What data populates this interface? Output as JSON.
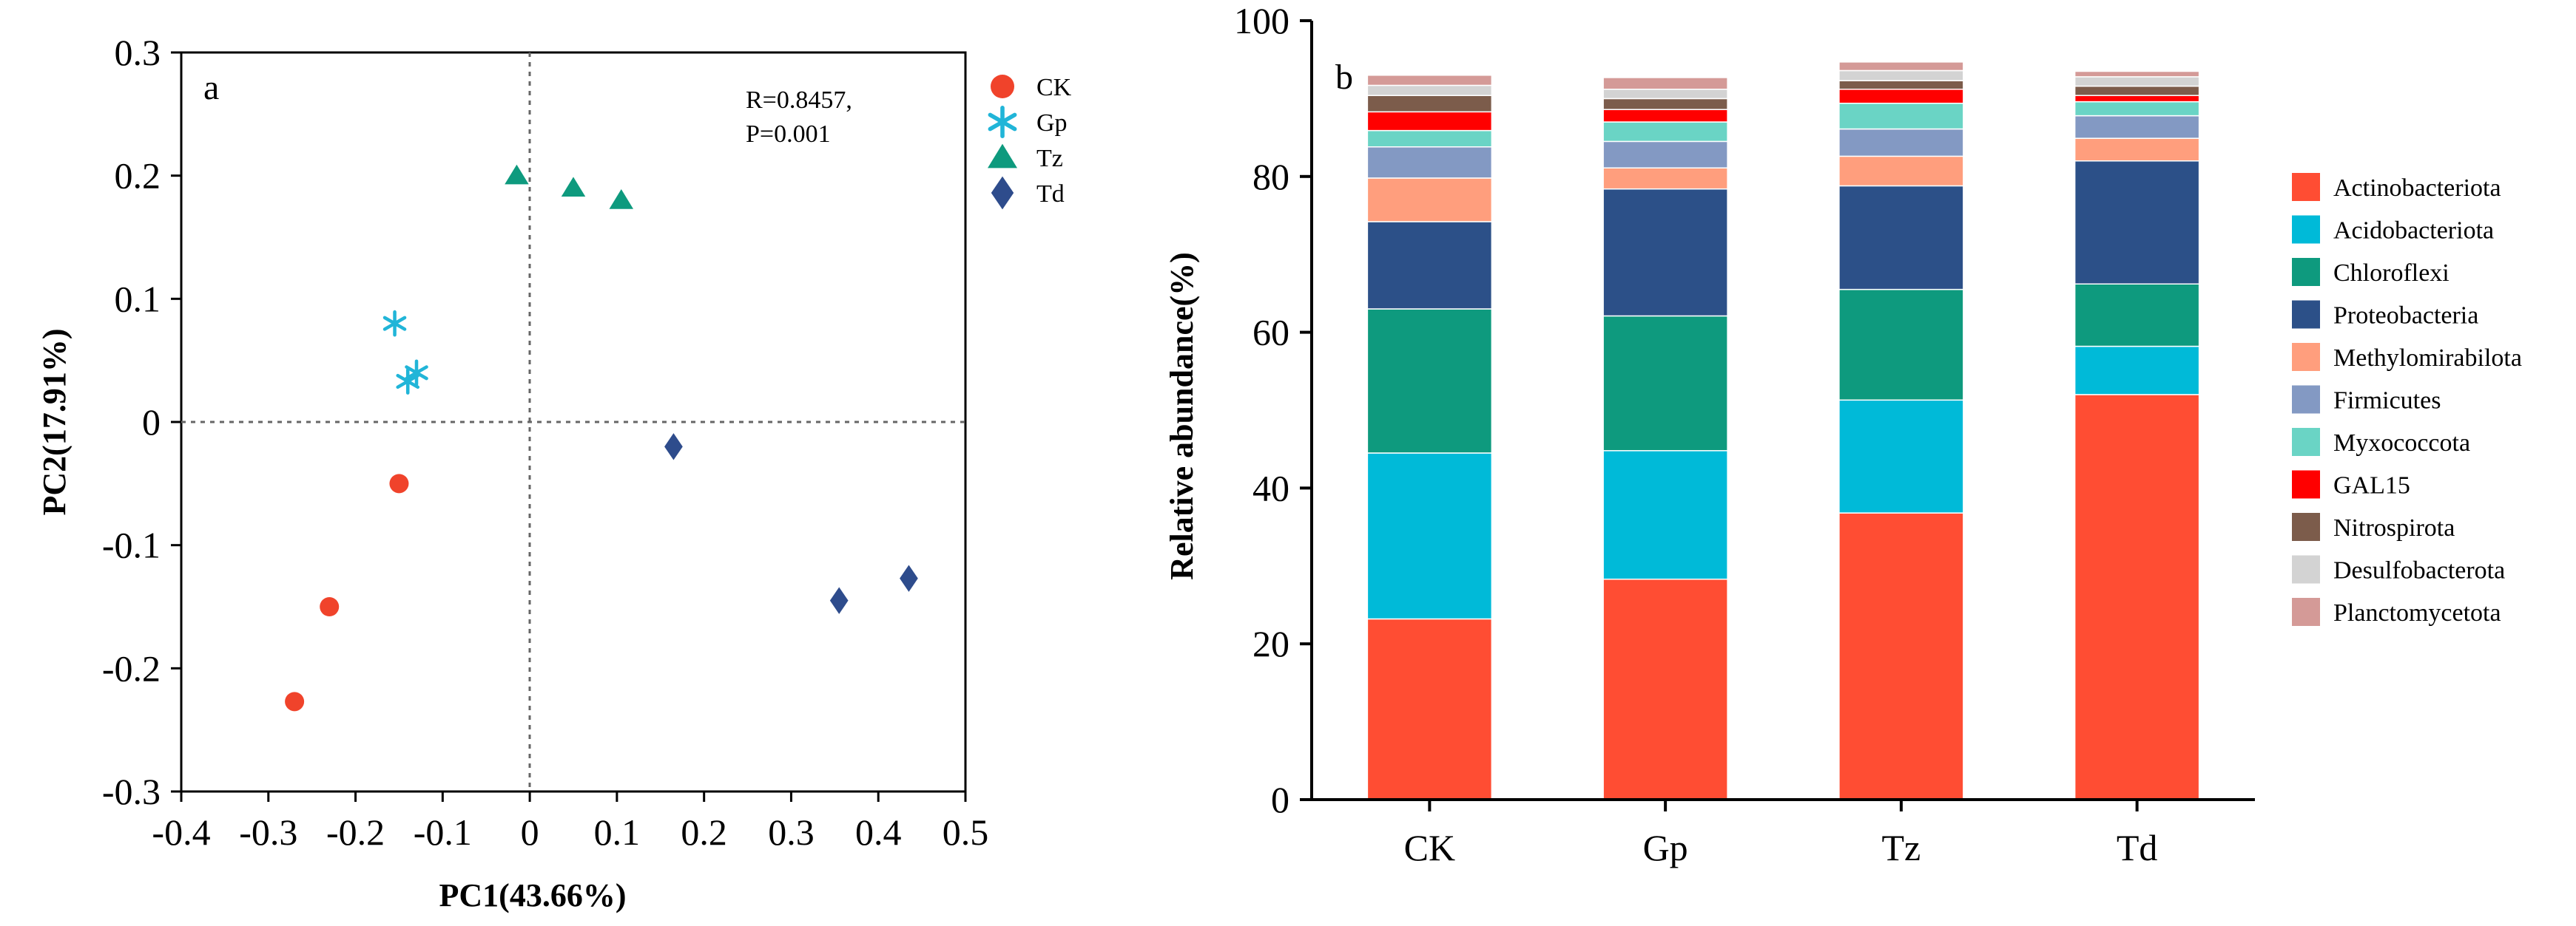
{
  "chart_data": [
    {
      "type": "scatter",
      "panel_label": "a",
      "xlabel": "PC1(43.66%)",
      "ylabel": "PC2(17.91%)",
      "xlim": [
        -0.4,
        0.5
      ],
      "ylim": [
        -0.3,
        0.3
      ],
      "x_ticks": [
        -0.4,
        -0.3,
        -0.2,
        -0.1,
        0,
        0.1,
        0.2,
        0.3,
        0.4,
        0.5
      ],
      "y_ticks": [
        -0.3,
        -0.2,
        -0.1,
        0,
        0.1,
        0.2,
        0.3
      ],
      "stats": [
        "R=0.8457,",
        "P=0.001"
      ],
      "series": [
        {
          "name": "CK",
          "marker": "circle",
          "color": "#F0432B",
          "points": [
            [
              -0.15,
              -0.05
            ],
            [
              -0.23,
              -0.15
            ],
            [
              -0.27,
              -0.227
            ]
          ]
        },
        {
          "name": "Gp",
          "marker": "asterisk",
          "color": "#21B5D8",
          "points": [
            [
              -0.155,
              0.08
            ],
            [
              -0.14,
              0.033
            ],
            [
              -0.13,
              0.04
            ]
          ]
        },
        {
          "name": "Tz",
          "marker": "triangle",
          "color": "#0E9A7E",
          "points": [
            [
              -0.015,
              0.2
            ],
            [
              0.05,
              0.19
            ],
            [
              0.105,
              0.18
            ]
          ]
        },
        {
          "name": "Td",
          "marker": "diamond",
          "color": "#2E4C8C",
          "points": [
            [
              0.165,
              -0.02
            ],
            [
              0.355,
              -0.145
            ],
            [
              0.435,
              -0.127
            ]
          ]
        }
      ]
    },
    {
      "type": "bar",
      "stacked": true,
      "panel_label": "b",
      "ylabel": "Relative abundance(%)",
      "ylim": [
        0,
        100
      ],
      "y_ticks": [
        0,
        20,
        40,
        60,
        80,
        100
      ],
      "categories": [
        "CK",
        "Gp",
        "Tz",
        "Td"
      ],
      "series": [
        {
          "name": "Actinobacteriota",
          "color": "#FF4D33",
          "values": [
            23.2,
            28.3,
            36.8,
            52.0
          ]
        },
        {
          "name": "Acidobacteriota",
          "color": "#00BAD8",
          "values": [
            21.3,
            16.5,
            14.5,
            6.2
          ]
        },
        {
          "name": "Chloroflexi",
          "color": "#0E9A7E",
          "values": [
            18.5,
            17.3,
            14.2,
            8.0
          ]
        },
        {
          "name": "Proteobacteria",
          "color": "#2C5088",
          "values": [
            11.2,
            16.3,
            13.3,
            15.8
          ]
        },
        {
          "name": "Methylomirabilota",
          "color": "#FF9E7D",
          "values": [
            5.6,
            2.7,
            3.8,
            2.9
          ]
        },
        {
          "name": "Firmicutes",
          "color": "#8399C3",
          "values": [
            4.0,
            3.4,
            3.5,
            2.9
          ]
        },
        {
          "name": "Myxococcota",
          "color": "#6AD4C5",
          "values": [
            2.1,
            2.5,
            3.3,
            1.8
          ]
        },
        {
          "name": "GAL15",
          "color": "#FF0000",
          "values": [
            2.4,
            1.6,
            1.8,
            0.8
          ]
        },
        {
          "name": "Nitrospirota",
          "color": "#7C5C4B",
          "values": [
            2.1,
            1.4,
            1.1,
            1.2
          ]
        },
        {
          "name": "Desulfobacterota",
          "color": "#D3D3D3",
          "values": [
            1.3,
            1.2,
            1.3,
            1.2
          ]
        },
        {
          "name": "Planctomycetota",
          "color": "#D49A97",
          "values": [
            1.3,
            1.5,
            1.1,
            0.7
          ]
        }
      ]
    }
  ]
}
